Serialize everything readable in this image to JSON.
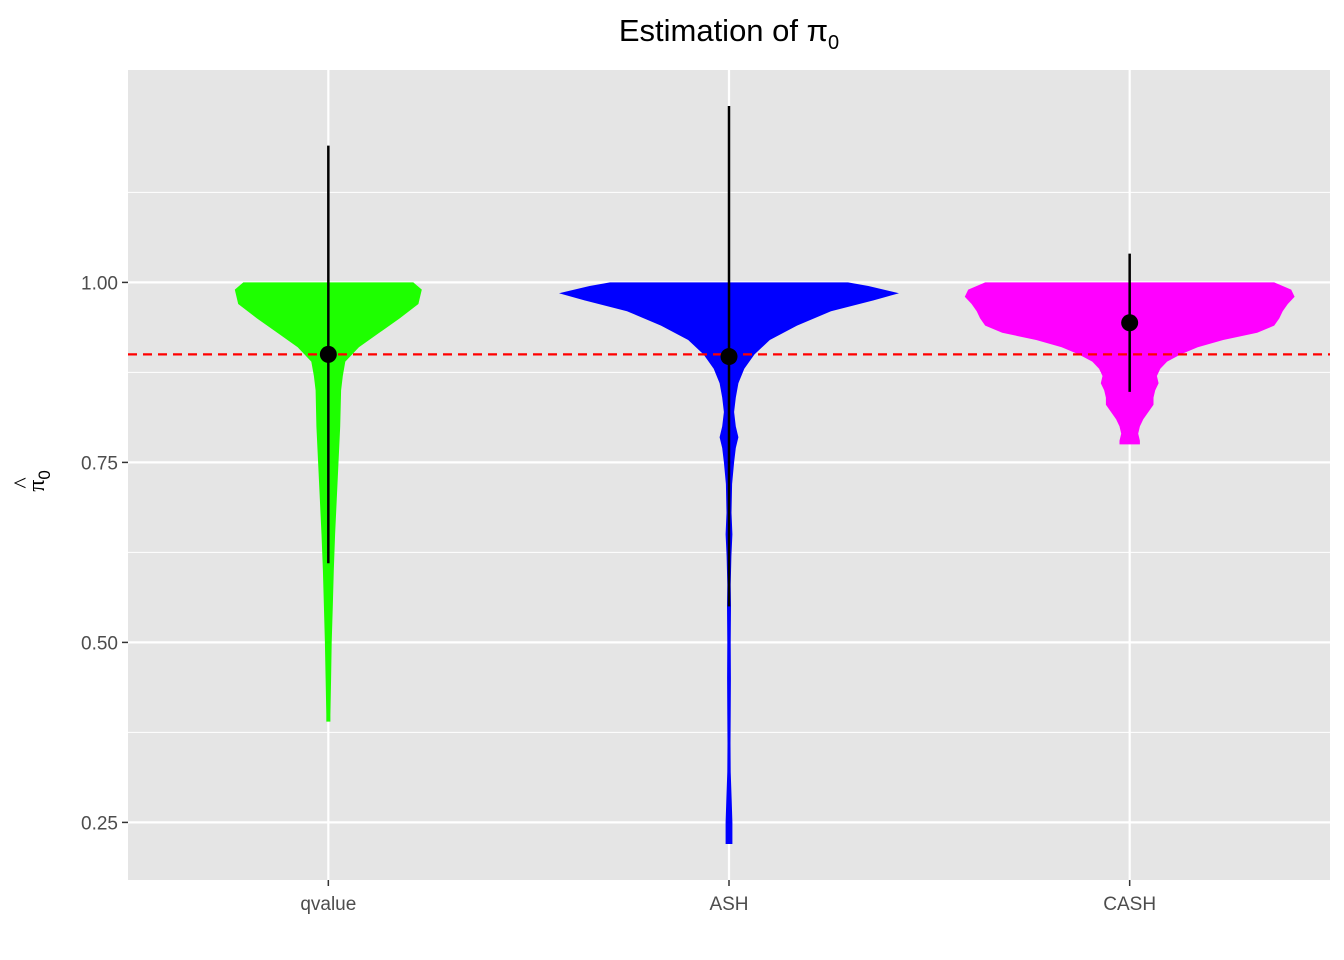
{
  "chart_data": {
    "type": "violin",
    "title": "Estimation of π",
    "title_subscript": "0",
    "ylabel": "π",
    "ylabel_hat": "^",
    "ylabel_subscript": "0",
    "xlabel": "",
    "ylim": [
      0.17,
      1.295
    ],
    "yticks": [
      0.25,
      0.5,
      0.75,
      1.0
    ],
    "ytick_labels": [
      "0.25",
      "0.50",
      "0.75",
      "1.00"
    ],
    "grid": true,
    "background": "#e5e5e5",
    "categories": [
      "qvalue",
      "ASH",
      "CASH"
    ],
    "reference_line": {
      "y": 0.9,
      "color": "#ff0000",
      "style": "dashed"
    },
    "series": [
      {
        "category": "qvalue",
        "color": "#1eff00",
        "mean": 0.9,
        "interval": [
          0.61,
          1.19
        ],
        "min": 0.39,
        "max": 1.0,
        "density_profile": [
          [
            1.0,
            0.5
          ],
          [
            0.99,
            0.55
          ],
          [
            0.97,
            0.53
          ],
          [
            0.95,
            0.42
          ],
          [
            0.93,
            0.3
          ],
          [
            0.91,
            0.18
          ],
          [
            0.89,
            0.1
          ],
          [
            0.87,
            0.085
          ],
          [
            0.85,
            0.075
          ],
          [
            0.8,
            0.07
          ],
          [
            0.75,
            0.06
          ],
          [
            0.7,
            0.05
          ],
          [
            0.65,
            0.04
          ],
          [
            0.6,
            0.032
          ],
          [
            0.55,
            0.026
          ],
          [
            0.5,
            0.02
          ],
          [
            0.45,
            0.016
          ],
          [
            0.4,
            0.012
          ],
          [
            0.39,
            0.012
          ]
        ]
      },
      {
        "category": "ASH",
        "color": "#0000ff",
        "mean": 0.897,
        "interval": [
          0.55,
          1.245
        ],
        "min": 0.22,
        "max": 1.0,
        "density_profile": [
          [
            1.0,
            0.7
          ],
          [
            0.995,
            0.82
          ],
          [
            0.985,
            1.0
          ],
          [
            0.975,
            0.85
          ],
          [
            0.96,
            0.6
          ],
          [
            0.94,
            0.4
          ],
          [
            0.92,
            0.24
          ],
          [
            0.9,
            0.15
          ],
          [
            0.88,
            0.09
          ],
          [
            0.86,
            0.055
          ],
          [
            0.84,
            0.04
          ],
          [
            0.82,
            0.03
          ],
          [
            0.8,
            0.04
          ],
          [
            0.785,
            0.055
          ],
          [
            0.77,
            0.04
          ],
          [
            0.75,
            0.03
          ],
          [
            0.72,
            0.018
          ],
          [
            0.68,
            0.015
          ],
          [
            0.65,
            0.02
          ],
          [
            0.62,
            0.014
          ],
          [
            0.58,
            0.01
          ],
          [
            0.55,
            0.012
          ],
          [
            0.5,
            0.01
          ],
          [
            0.45,
            0.011
          ],
          [
            0.4,
            0.01
          ],
          [
            0.36,
            0.009
          ],
          [
            0.32,
            0.01
          ],
          [
            0.28,
            0.016
          ],
          [
            0.25,
            0.02
          ],
          [
            0.22,
            0.02
          ]
        ]
      },
      {
        "category": "CASH",
        "color": "#ff00ff",
        "mean": 0.944,
        "interval": [
          0.848,
          1.04
        ],
        "min": 0.775,
        "max": 1.0,
        "density_profile": [
          [
            1.0,
            0.85
          ],
          [
            0.99,
            0.95
          ],
          [
            0.98,
            0.97
          ],
          [
            0.97,
            0.93
          ],
          [
            0.96,
            0.9
          ],
          [
            0.95,
            0.88
          ],
          [
            0.94,
            0.85
          ],
          [
            0.93,
            0.75
          ],
          [
            0.92,
            0.55
          ],
          [
            0.91,
            0.4
          ],
          [
            0.9,
            0.3
          ],
          [
            0.89,
            0.22
          ],
          [
            0.88,
            0.18
          ],
          [
            0.87,
            0.16
          ],
          [
            0.86,
            0.17
          ],
          [
            0.85,
            0.15
          ],
          [
            0.84,
            0.14
          ],
          [
            0.83,
            0.14
          ],
          [
            0.82,
            0.11
          ],
          [
            0.81,
            0.08
          ],
          [
            0.8,
            0.06
          ],
          [
            0.79,
            0.05
          ],
          [
            0.78,
            0.06
          ],
          [
            0.775,
            0.06
          ]
        ]
      }
    ]
  }
}
